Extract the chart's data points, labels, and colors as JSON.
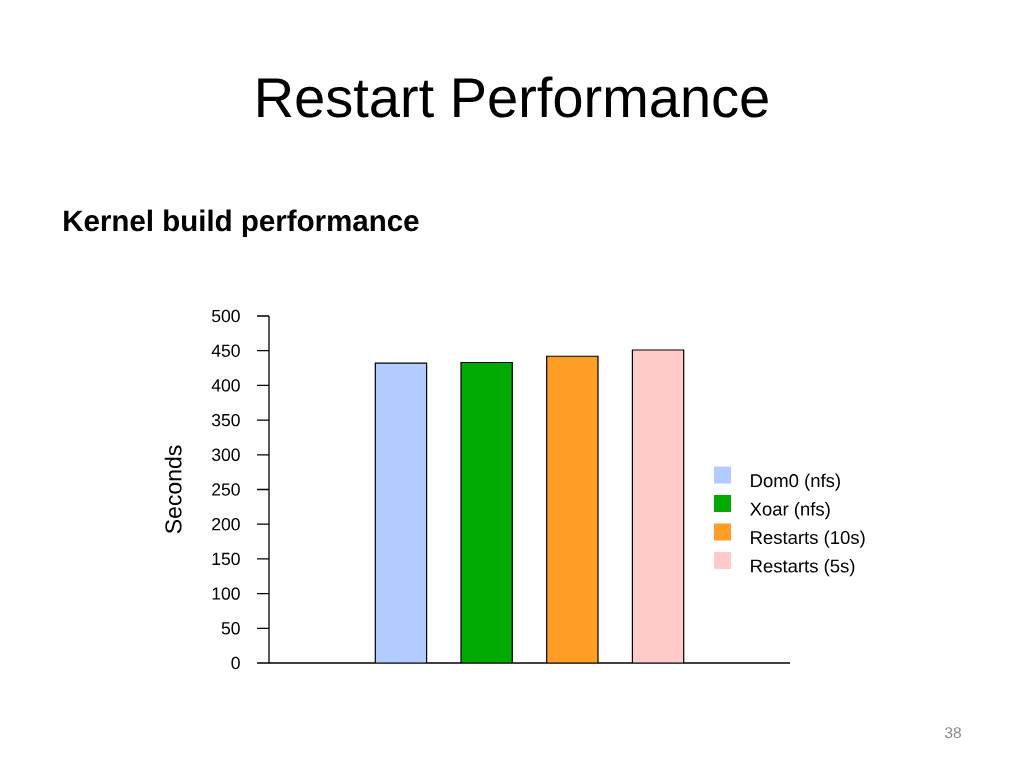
{
  "chart_data": {
    "type": "bar",
    "title": "Restart Performance",
    "subtitle": "Kernel build performance",
    "ylabel": "Seconds",
    "categories": [
      null
    ],
    "series": [
      {
        "name": "Dom0 (nfs)",
        "color": "#b3ccff",
        "values": [
          432
        ]
      },
      {
        "name": "Xoar (nfs)",
        "color": "#00aa00",
        "values": [
          433
        ]
      },
      {
        "name": "Restarts (10s)",
        "color": "#ff9e24",
        "values": [
          442
        ]
      },
      {
        "name": "Restarts (5s)",
        "color": "#ffcaca",
        "values": [
          451
        ]
      }
    ],
    "ylim": [
      0,
      500
    ],
    "yticks": [
      0,
      50,
      100,
      150,
      200,
      250,
      300,
      350,
      400,
      450,
      500
    ],
    "tick_labels": "y",
    "grid": false,
    "legend": "right",
    "annotations": [
      "38"
    ]
  }
}
